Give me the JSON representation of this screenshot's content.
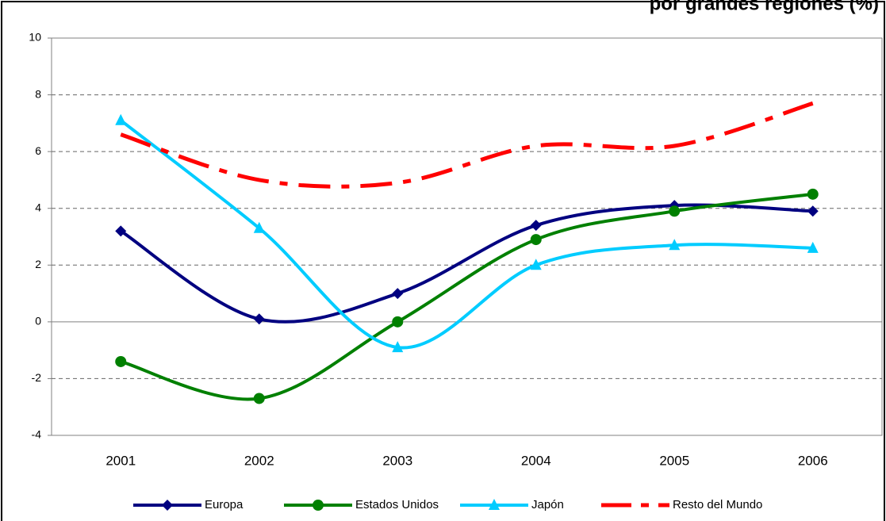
{
  "chart_data": {
    "type": "line",
    "title": "por grandes regiones (%)",
    "categories": [
      "2001",
      "2002",
      "2003",
      "2004",
      "2005",
      "2006"
    ],
    "series": [
      {
        "name": "Europa",
        "color": "#000080",
        "marker": "diamond",
        "values": [
          3.2,
          0.1,
          1.0,
          3.4,
          4.1,
          3.9
        ]
      },
      {
        "name": "Estados Unidos",
        "color": "#008000",
        "marker": "circle",
        "values": [
          -1.4,
          -2.7,
          0.0,
          2.9,
          3.9,
          4.5
        ]
      },
      {
        "name": "Japón",
        "color": "#00ccff",
        "marker": "triangle",
        "values": [
          7.1,
          3.3,
          -0.9,
          2.0,
          2.7,
          2.6
        ]
      },
      {
        "name": "Resto del Mundo",
        "color": "#ff0000",
        "marker": "none",
        "dash": true,
        "values": [
          6.6,
          5.0,
          4.9,
          6.2,
          6.2,
          7.7
        ]
      }
    ],
    "ylim": [
      -4,
      10
    ],
    "yticks": [
      -4,
      -2,
      0,
      2,
      4,
      6,
      8,
      10
    ],
    "grid": true,
    "legend": "bottom"
  }
}
